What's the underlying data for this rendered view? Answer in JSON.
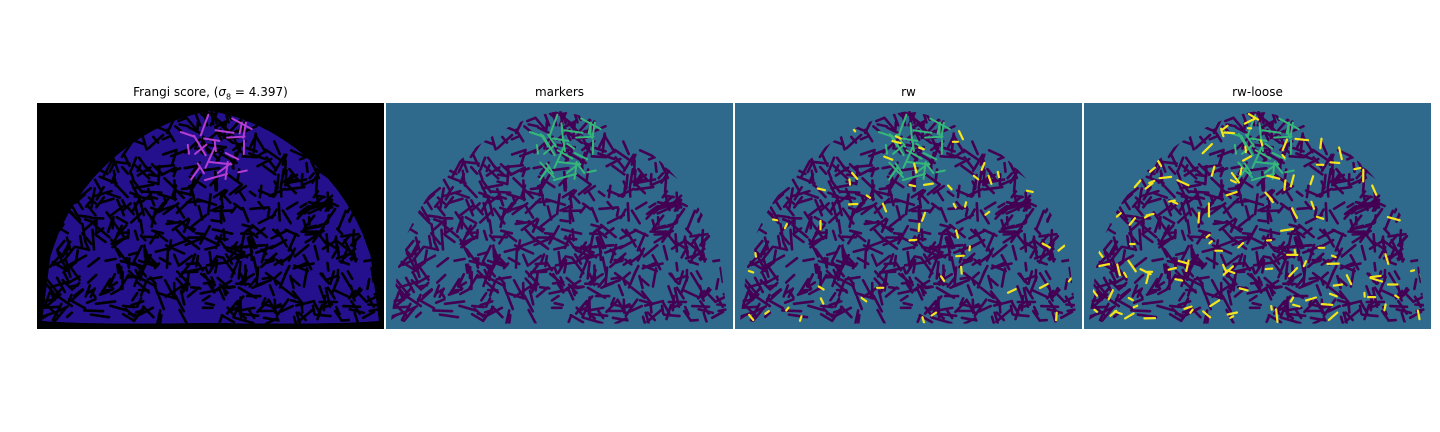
{
  "panels": [
    {
      "title_prefix": "Frangi score, (",
      "title_symbol": "σ",
      "title_sub": "8",
      "title_suffix": " = 4.397)",
      "colors": {
        "bg": "#000000",
        "blob": "#24108c",
        "dark": "#000000",
        "vessel": "#b43cd2"
      }
    },
    {
      "title": "markers",
      "colors": {
        "bg": "#2f6a8c",
        "blob": "#2f6a8c",
        "dark": "#440154",
        "vessel": "#35b779"
      }
    },
    {
      "title": "rw",
      "colors": {
        "bg": "#2f6a8c",
        "blob": "#2f6a8c",
        "dark": "#440154",
        "vessel": "#35b779",
        "highlight": "#f4e51c"
      }
    },
    {
      "title": "rw-loose",
      "colors": {
        "bg": "#2f6a8c",
        "blob": "#2f6a8c",
        "dark": "#440154",
        "vessel": "#35b779",
        "highlight": "#f4e51c"
      }
    }
  ]
}
